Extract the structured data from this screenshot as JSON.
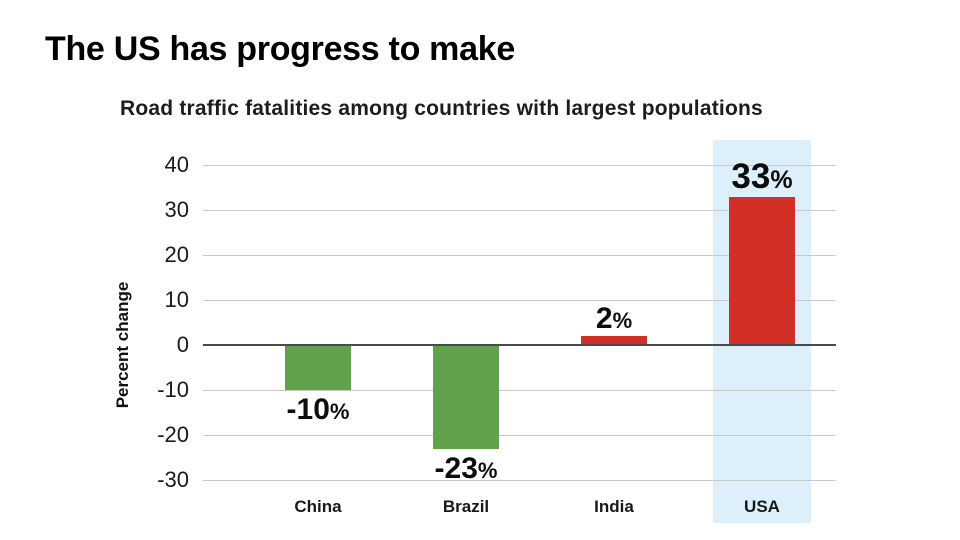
{
  "slide": {
    "title": "The US has progress to make"
  },
  "chart_data": {
    "type": "bar",
    "title": "Road traffic fatalities among countries with largest populations",
    "xlabel": "",
    "ylabel": "Percent change",
    "categories": [
      "China",
      "Brazil",
      "India",
      "USA"
    ],
    "values": [
      -10,
      -23,
      2,
      33
    ],
    "value_labels": [
      "-10%",
      "-23%",
      "2%",
      "33%"
    ],
    "bar_colors": [
      "#60A24C",
      "#60A24C",
      "#D22F27",
      "#D22F27"
    ],
    "highlighted_category": "USA",
    "highlight_band_color": "#DDEFFA",
    "yticks": [
      40,
      30,
      20,
      10,
      0,
      -10,
      -20,
      -30
    ],
    "ylim": [
      -33,
      45
    ],
    "grid": true,
    "legend": false,
    "colors": {
      "decrease": "#60A24C",
      "increase": "#D22F27",
      "gridline": "#C9C9C9",
      "zero_line": "#4A4A4A",
      "text": "#111111"
    }
  }
}
